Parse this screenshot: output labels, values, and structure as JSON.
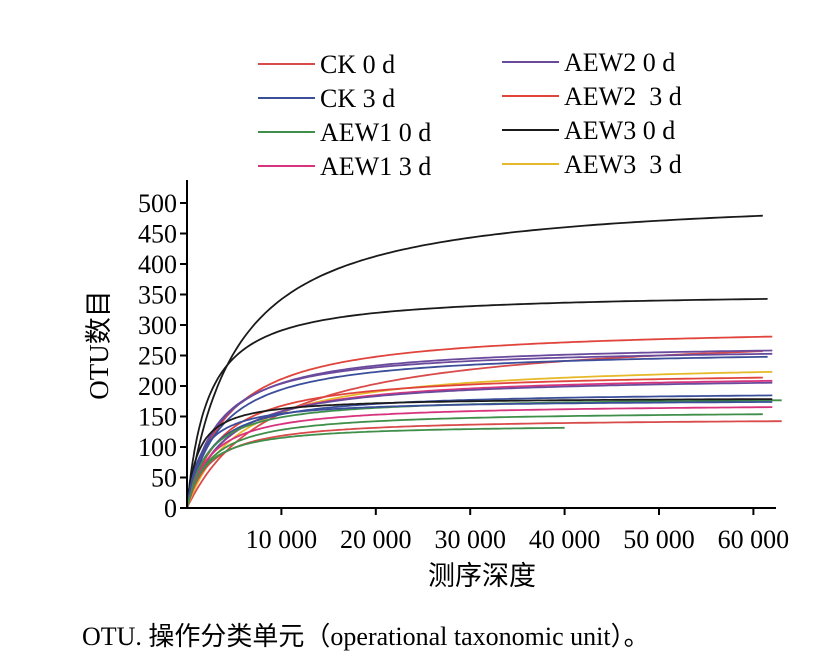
{
  "chart_data": {
    "type": "line",
    "title": "",
    "xlabel": "测序深度",
    "ylabel": "OTU数目",
    "xlim": [
      0,
      63000
    ],
    "ylim": [
      0,
      530
    ],
    "x_ticks": [
      10000,
      20000,
      30000,
      40000,
      50000,
      60000
    ],
    "x_tick_labels": [
      "10 000",
      "20 000",
      "30 000",
      "40 000",
      "50 000",
      "60 000"
    ],
    "y_ticks": [
      0,
      50,
      100,
      150,
      200,
      250,
      300,
      350,
      400,
      450,
      500
    ],
    "y_tick_labels": [
      "0",
      "50",
      "100",
      "150",
      "200",
      "250",
      "300",
      "350",
      "400",
      "450",
      "500"
    ],
    "grid": false,
    "legend_position": "top",
    "legend": [
      {
        "label": "CK 0 d",
        "color": "#d94a4a"
      },
      {
        "label": "CK 3 d",
        "color": "#3a4e9a"
      },
      {
        "label": "AEW1 0 d",
        "color": "#3f8f4a"
      },
      {
        "label": "AEW1 3 d",
        "color": "#d8347e"
      },
      {
        "label": "AEW2 0 d",
        "color": "#6a4a9c"
      },
      {
        "label": "AEW2  3 d",
        "color": "#e0443c"
      },
      {
        "label": "AEW3 0 d",
        "color": "#1a1a1a"
      },
      {
        "label": "AEW3  3 d",
        "color": "#e6b92a"
      }
    ],
    "series": [
      {
        "name": "AEW3 0 d",
        "color": "#1a1a1a",
        "max": 520,
        "k": 5200,
        "x_end": 61000
      },
      {
        "name": "AEW3 0 d",
        "color": "#1a1a1a",
        "max": 355,
        "k": 2200,
        "x_end": 61500
      },
      {
        "name": "AEW2  3 d",
        "color": "#e0443c",
        "max": 300,
        "k": 4200,
        "x_end": 62000
      },
      {
        "name": "CK 0 d",
        "color": "#d94a4a",
        "max": 295,
        "k": 9000,
        "x_end": 61000
      },
      {
        "name": "AEW2 0 d",
        "color": "#6a4a9c",
        "max": 272,
        "k": 3300,
        "x_end": 62000
      },
      {
        "name": "AEW2 0 d",
        "color": "#6a4a9c",
        "max": 265,
        "k": 3000,
        "x_end": 62000
      },
      {
        "name": "CK 3 d",
        "color": "#3a4e9a",
        "max": 262,
        "k": 3500,
        "x_end": 61500
      },
      {
        "name": "AEW3  3 d",
        "color": "#e6b92a",
        "max": 243,
        "k": 5500,
        "x_end": 62000
      },
      {
        "name": "AEW2  3 d",
        "color": "#e0443c",
        "max": 226,
        "k": 3500,
        "x_end": 61000
      },
      {
        "name": "AEW1 3 d",
        "color": "#d8347e",
        "max": 222,
        "k": 4000,
        "x_end": 62000
      },
      {
        "name": "AEW2 0 d",
        "color": "#6a4a9c",
        "max": 218,
        "k": 3800,
        "x_end": 62000
      },
      {
        "name": "CK 3 d",
        "color": "#3a4e9a",
        "max": 192,
        "k": 2500,
        "x_end": 62000
      },
      {
        "name": "AEW1 0 d",
        "color": "#3f8f4a",
        "max": 183,
        "k": 2300,
        "x_end": 63000
      },
      {
        "name": "AEW3 0 d",
        "color": "#1a1a1a",
        "max": 182,
        "k": 1200,
        "x_end": 62000
      },
      {
        "name": "CK 3 d",
        "color": "#3a4e9a",
        "max": 178,
        "k": 1500,
        "x_end": 62000
      },
      {
        "name": "AEW1 3 d",
        "color": "#d8347e",
        "max": 172,
        "k": 2500,
        "x_end": 62000
      },
      {
        "name": "AEW1 0 d",
        "color": "#3f8f4a",
        "max": 160,
        "k": 2500,
        "x_end": 61000
      },
      {
        "name": "CK 0 d",
        "color": "#d94a4a",
        "max": 148,
        "k": 2500,
        "x_end": 63000
      },
      {
        "name": "AEW1 0 d",
        "color": "#3f8f4a",
        "max": 138,
        "k": 2000,
        "x_end": 40000
      }
    ]
  },
  "caption": "OTU. 操作分类单元（operational taxonomic unit）。"
}
